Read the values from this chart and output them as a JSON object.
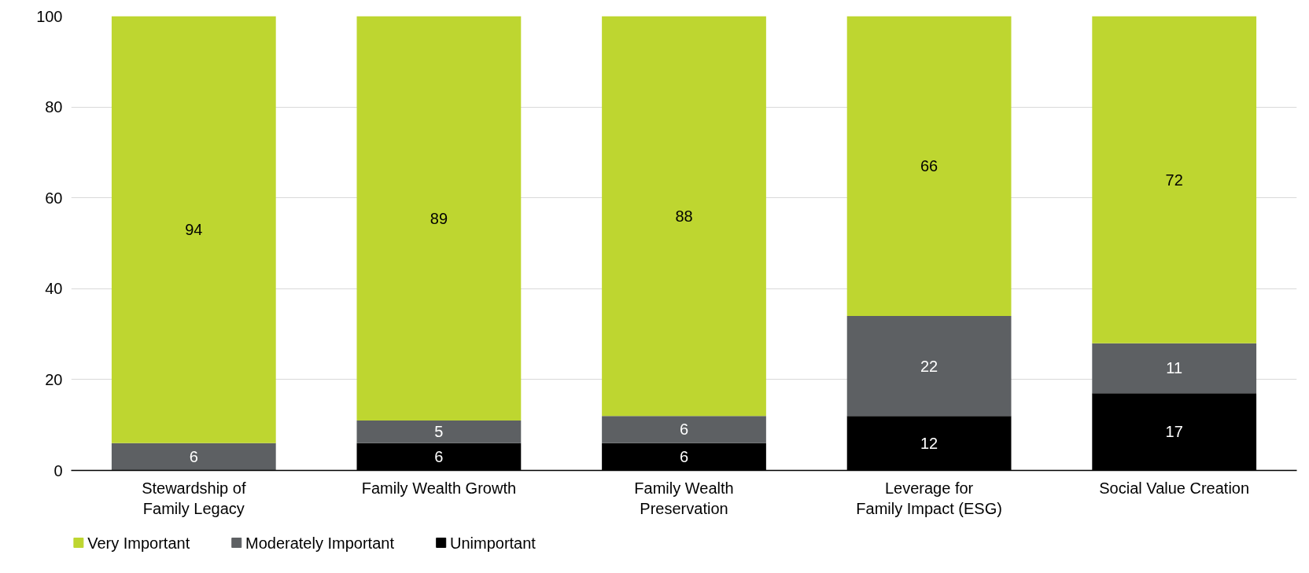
{
  "chart_data": {
    "type": "bar",
    "stacked": true,
    "categories": [
      "Stewardship of\nFamily Legacy",
      "Family Wealth Growth",
      "Family Wealth\nPreservation",
      "Leverage for\nFamily Impact (ESG)",
      "Social Value Creation"
    ],
    "series": [
      {
        "name": "Unimportant",
        "color": "#000000",
        "values": [
          null,
          6,
          6,
          12,
          17
        ]
      },
      {
        "name": "Moderately Important",
        "color": "#5d6063",
        "values": [
          6,
          5,
          6,
          22,
          11
        ]
      },
      {
        "name": "Very Important",
        "color": "#bed630",
        "values": [
          94,
          89,
          88,
          66,
          72
        ]
      }
    ],
    "ylim": [
      0,
      100
    ],
    "yticks": [
      0,
      20,
      40,
      60,
      80,
      100
    ],
    "grid": "y",
    "legend": "bottom left",
    "data_labels": true
  }
}
